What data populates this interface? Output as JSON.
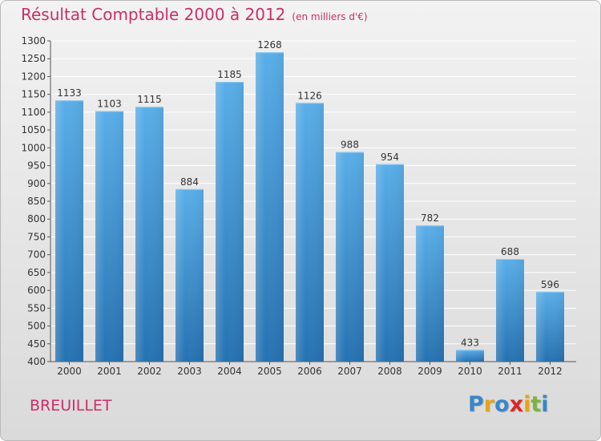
{
  "header": {
    "title": "Résultat Comptable 2000 à 2012",
    "unit": "(en milliers d'€)"
  },
  "footer": {
    "place": "BREUILLET",
    "logo": "Proxiti"
  },
  "colors": {
    "title": "#cc2e68",
    "bar_light": "#5aaee8",
    "bar_dark": "#2672b1",
    "logo_letters": [
      "#3a86c9",
      "#e8a21a",
      "#3a86c9",
      "#d9282a",
      "#e8a21a",
      "#7cb342",
      "#3a86c9"
    ]
  },
  "chart_data": {
    "type": "bar",
    "title": "Résultat Comptable 2000 à 2012",
    "subtitle": "(en milliers d'€)",
    "categories": [
      "2000",
      "2001",
      "2002",
      "2003",
      "2004",
      "2005",
      "2006",
      "2007",
      "2008",
      "2009",
      "2010",
      "2011",
      "2012"
    ],
    "values": [
      1133,
      1103,
      1115,
      884,
      1185,
      1268,
      1126,
      988,
      954,
      782,
      433,
      688,
      596
    ],
    "ylim": [
      400,
      1300
    ],
    "yticks": [
      400,
      450,
      500,
      550,
      600,
      650,
      700,
      750,
      800,
      850,
      900,
      950,
      1000,
      1050,
      1100,
      1150,
      1200,
      1250,
      1300
    ],
    "grid": true,
    "legend": "none"
  }
}
